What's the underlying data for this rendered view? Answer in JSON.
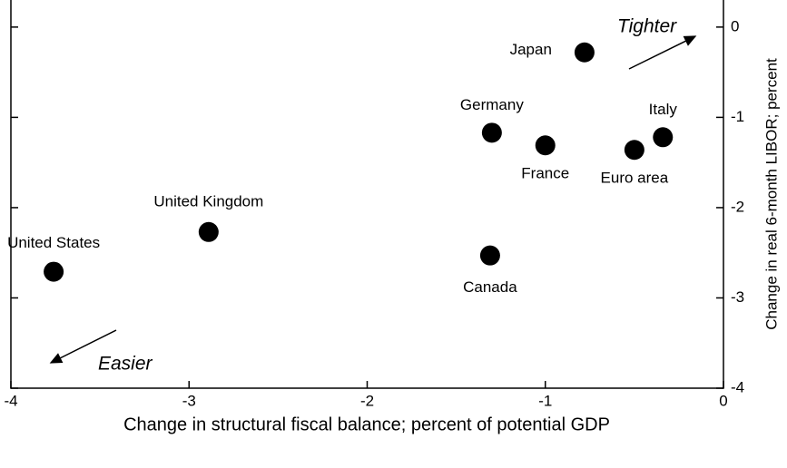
{
  "chart_data": {
    "type": "scatter",
    "x_label": "Change in structural fiscal balance; percent of potential GDP",
    "y_label": "Change in real 6-month LIBOR; percent",
    "labels": [
      "Japan",
      "Germany",
      "France",
      "Euro area",
      "Italy",
      "United Kingdom",
      "United States",
      "Canada"
    ],
    "x": [
      -0.78,
      -1.3,
      -1.0,
      -0.5,
      -0.34,
      -2.89,
      -3.76,
      -1.31
    ],
    "y": [
      -0.28,
      -1.17,
      -1.31,
      -1.36,
      -1.22,
      -2.27,
      -2.71,
      -2.53
    ],
    "color": "#000000",
    "xlim": [
      -4,
      0
    ],
    "xticks": [
      -4,
      -3,
      -2,
      -1,
      0
    ],
    "ylim": [
      -4,
      0.3
    ],
    "yticks": [
      -4,
      -3,
      -2,
      -1,
      0
    ],
    "annotations": [
      "Tighter",
      "Easier"
    ]
  }
}
